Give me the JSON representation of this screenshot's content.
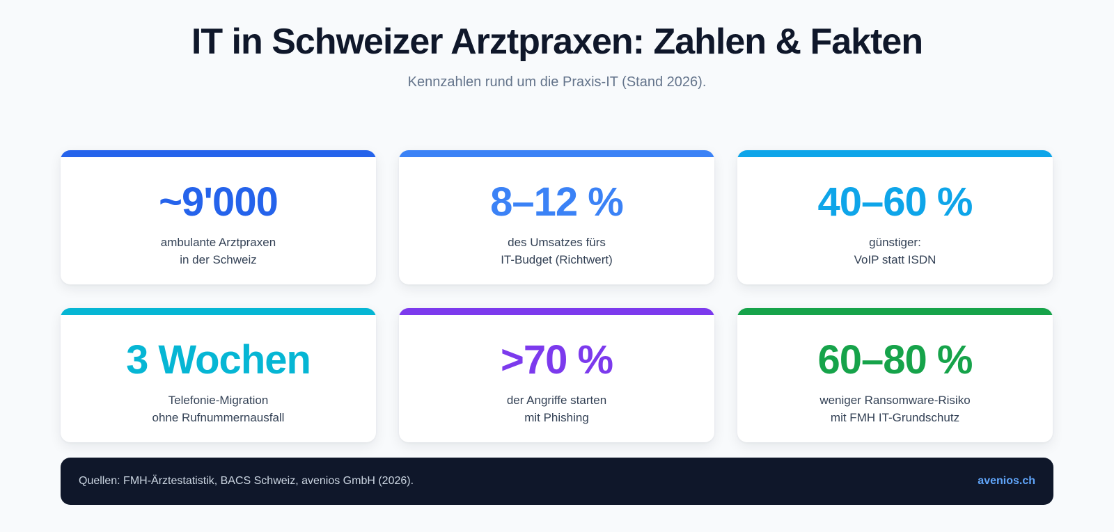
{
  "header": {
    "title": "IT in Schweizer Arztpraxen: Zahlen & Fakten",
    "subtitle": "Kennzahlen rund um die Praxis-IT (Stand 2026)."
  },
  "cards": [
    {
      "value": "~9'000",
      "line1": "ambulante Arztpraxen",
      "line2": "in der Schweiz",
      "color": "#2563eb"
    },
    {
      "value": "8–12 %",
      "line1": "des Umsatzes fürs",
      "line2": "IT-Budget (Richtwert)",
      "color": "#3b82f6"
    },
    {
      "value": "40–60 %",
      "line1": "günstiger:",
      "line2": "VoIP statt ISDN",
      "color": "#0ea5e9"
    },
    {
      "value": "3 Wochen",
      "line1": "Telefonie-Migration",
      "line2": "ohne Rufnummernausfall",
      "color": "#06b6d4"
    },
    {
      "value": ">70 %",
      "line1": "der Angriffe starten",
      "line2": "mit Phishing",
      "color": "#7c3aed"
    },
    {
      "value": "60–80 %",
      "line1": "weniger Ransomware-Risiko",
      "line2": "mit FMH IT-Grundschutz",
      "color": "#16a34a"
    }
  ],
  "footer": {
    "sources": "Quellen: FMH-Ärztestatistik, BACS Schweiz, avenios GmbH (2026).",
    "brand": "avenios.ch"
  }
}
